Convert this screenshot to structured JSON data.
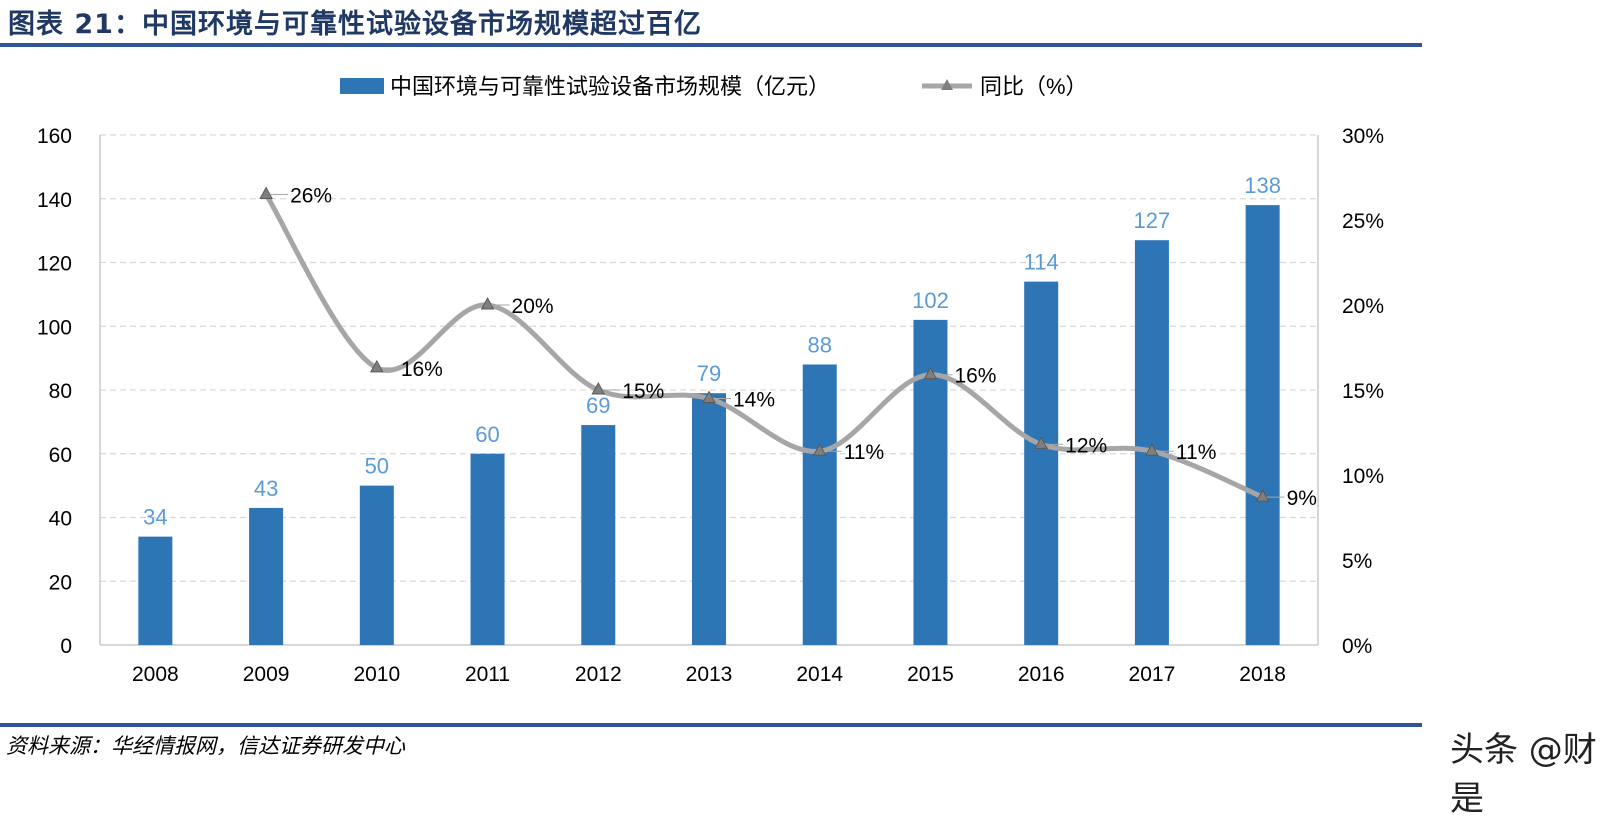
{
  "title": "图表 21：中国环境与可靠性试验设备市场规模超过百亿",
  "source": "资料来源：华经情报网，信达证券研发中心",
  "watermark": "头条 @财是",
  "colors": {
    "bar": "#2e75b6",
    "bar_label": "#5b9bd5",
    "line": "#a6a6a6",
    "marker": "#7f7f7f",
    "rule": "#2f5597",
    "title": "#1f3864"
  },
  "chart_data": {
    "type": "bar+line",
    "categories": [
      "2008",
      "2009",
      "2010",
      "2011",
      "2012",
      "2013",
      "2014",
      "2015",
      "2016",
      "2017",
      "2018"
    ],
    "series": [
      {
        "name": "中国环境与可靠性试验设备市场规模（亿元）",
        "type": "bar",
        "axis": "left",
        "values": [
          34,
          43,
          50,
          60,
          69,
          79,
          88,
          102,
          114,
          127,
          138
        ],
        "labels": [
          "34",
          "43",
          "50",
          "60",
          "69",
          "79",
          "88",
          "102",
          "114",
          "127",
          "138"
        ]
      },
      {
        "name": "同比（%）",
        "type": "line",
        "axis": "right",
        "marker": "triangle",
        "smooth": true,
        "values": [
          null,
          26.5,
          16.3,
          20.0,
          15.0,
          14.5,
          11.4,
          15.9,
          11.8,
          11.4,
          8.7
        ],
        "labels": [
          "",
          "26%",
          "16%",
          "20%",
          "15%",
          "14%",
          "11%",
          "16%",
          "12%",
          "11%",
          "9%"
        ]
      }
    ],
    "left_axis": {
      "ylim": [
        0,
        160
      ],
      "ticks": [
        "0",
        "20",
        "40",
        "60",
        "80",
        "100",
        "120",
        "140",
        "160"
      ]
    },
    "right_axis": {
      "ylim": [
        0,
        30
      ],
      "ticks": [
        "0%",
        "5%",
        "10%",
        "15%",
        "20%",
        "25%",
        "30%"
      ]
    },
    "grid": true,
    "legend": "top"
  }
}
